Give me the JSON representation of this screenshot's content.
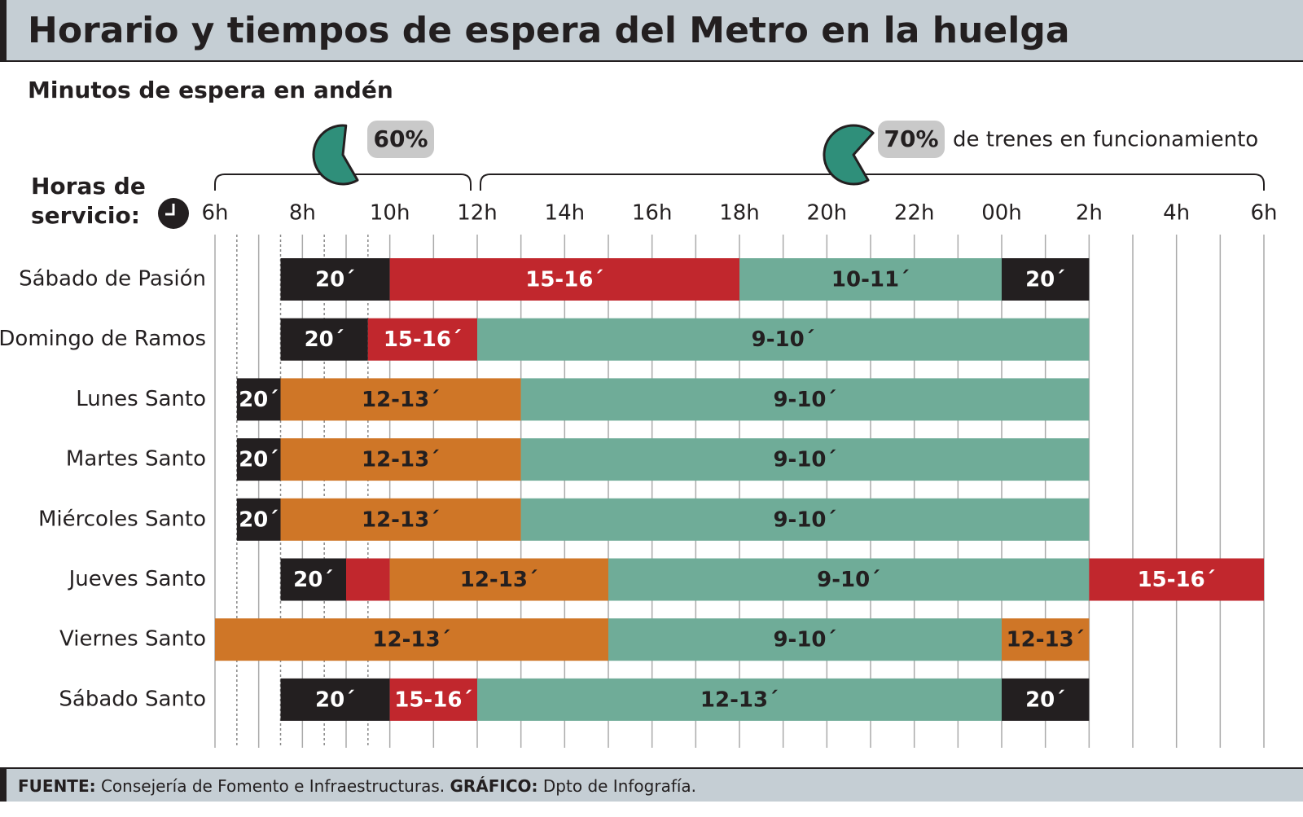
{
  "chart_data": {
    "type": "timeline",
    "title": "Horario y tiempos de espera del Metro en la huelga",
    "subtitle": "Minutos de espera en andén",
    "x_axis_label": "Horas de servicio:",
    "xlim": [
      6,
      30
    ],
    "xticks": [
      {
        "value": 6,
        "label": "6h"
      },
      {
        "value": 8,
        "label": "8h"
      },
      {
        "value": 10,
        "label": "10h"
      },
      {
        "value": 12,
        "label": "12h"
      },
      {
        "value": 14,
        "label": "14h"
      },
      {
        "value": 16,
        "label": "16h"
      },
      {
        "value": 18,
        "label": "18h"
      },
      {
        "value": 20,
        "label": "20h"
      },
      {
        "value": 22,
        "label": "22h"
      },
      {
        "value": 24,
        "label": "00h"
      },
      {
        "value": 26,
        "label": "2h"
      },
      {
        "value": 28,
        "label": "4h"
      },
      {
        "value": 30,
        "label": "6h"
      }
    ],
    "xgrid": [
      6,
      7,
      8,
      9,
      10,
      11,
      12,
      13,
      14,
      15,
      16,
      17,
      18,
      19,
      20,
      21,
      22,
      23,
      24,
      25,
      26,
      27,
      28,
      29,
      30
    ],
    "xgrid_dotted": [
      6.5,
      7.5,
      8.5,
      9.5
    ],
    "annotations": [
      {
        "range": [
          6,
          12
        ],
        "value": 60,
        "value_label": "60%",
        "color": "#2f8f7a"
      },
      {
        "range": [
          12,
          30
        ],
        "value": 70,
        "value_label": "70%",
        "text": "de trenes en funcionamiento",
        "color": "#2f8f7a"
      }
    ],
    "rows": [
      {
        "name": "Sábado de Pasión",
        "segments": [
          {
            "start": 7.5,
            "end": 10,
            "label": "20´",
            "color": "#231f20"
          },
          {
            "start": 10,
            "end": 18,
            "label": "15-16´",
            "color": "#c1272d"
          },
          {
            "start": 18,
            "end": 24,
            "label": "10-11´",
            "color": "#6fac98"
          },
          {
            "start": 24,
            "end": 26,
            "label": "20´",
            "color": "#231f20"
          }
        ]
      },
      {
        "name": "Domingo de Ramos",
        "segments": [
          {
            "start": 7.5,
            "end": 9.5,
            "label": "20´",
            "color": "#231f20"
          },
          {
            "start": 9.5,
            "end": 12,
            "label": "15-16´",
            "color": "#c1272d"
          },
          {
            "start": 12,
            "end": 26,
            "label": "9-10´",
            "color": "#6fac98"
          }
        ]
      },
      {
        "name": "Lunes Santo",
        "segments": [
          {
            "start": 6.5,
            "end": 7.5,
            "label": "20´",
            "color": "#231f20"
          },
          {
            "start": 7.5,
            "end": 13,
            "label": "12-13´",
            "color": "#cf7627"
          },
          {
            "start": 13,
            "end": 26,
            "label": "9-10´",
            "color": "#6fac98"
          }
        ]
      },
      {
        "name": "Martes Santo",
        "segments": [
          {
            "start": 6.5,
            "end": 7.5,
            "label": "20´",
            "color": "#231f20"
          },
          {
            "start": 7.5,
            "end": 13,
            "label": "12-13´",
            "color": "#cf7627"
          },
          {
            "start": 13,
            "end": 26,
            "label": "9-10´",
            "color": "#6fac98"
          }
        ]
      },
      {
        "name": "Miércoles Santo",
        "segments": [
          {
            "start": 6.5,
            "end": 7.5,
            "label": "20´",
            "color": "#231f20"
          },
          {
            "start": 7.5,
            "end": 13,
            "label": "12-13´",
            "color": "#cf7627"
          },
          {
            "start": 13,
            "end": 26,
            "label": "9-10´",
            "color": "#6fac98"
          }
        ]
      },
      {
        "name": "Jueves Santo",
        "segments": [
          {
            "start": 7.5,
            "end": 9,
            "label": "20´",
            "color": "#231f20"
          },
          {
            "start": 9,
            "end": 10,
            "color": "#c1272d"
          },
          {
            "start": 10,
            "end": 15,
            "label": "12-13´",
            "color": "#cf7627"
          },
          {
            "start": 15,
            "end": 26,
            "label": "9-10´",
            "color": "#6fac98"
          },
          {
            "start": 26,
            "end": 30,
            "label": "15-16´",
            "color": "#c1272d"
          }
        ]
      },
      {
        "name": "Viernes Santo",
        "segments": [
          {
            "start": 6,
            "end": 15,
            "label": "12-13´",
            "color": "#cf7627"
          },
          {
            "start": 15,
            "end": 24,
            "label": "9-10´",
            "color": "#6fac98"
          },
          {
            "start": 24,
            "end": 26,
            "label": "12-13´",
            "color": "#cf7627"
          }
        ]
      },
      {
        "name": "Sábado Santo",
        "segments": [
          {
            "start": 7.5,
            "end": 10,
            "label": "20´",
            "color": "#231f20"
          },
          {
            "start": 10,
            "end": 12,
            "label": "15-16´",
            "color": "#c1272d"
          },
          {
            "start": 12,
            "end": 24,
            "label": "12-13´",
            "color": "#6fac98"
          },
          {
            "start": 24,
            "end": 26,
            "label": "20´",
            "color": "#231f20"
          }
        ]
      }
    ]
  },
  "footer": {
    "source_label": "FUENTE:",
    "source": "Consejería de Fomento e Infraestructuras.",
    "credit_label": "GRÁFICO:",
    "credit": "Dpto de Infografía."
  }
}
